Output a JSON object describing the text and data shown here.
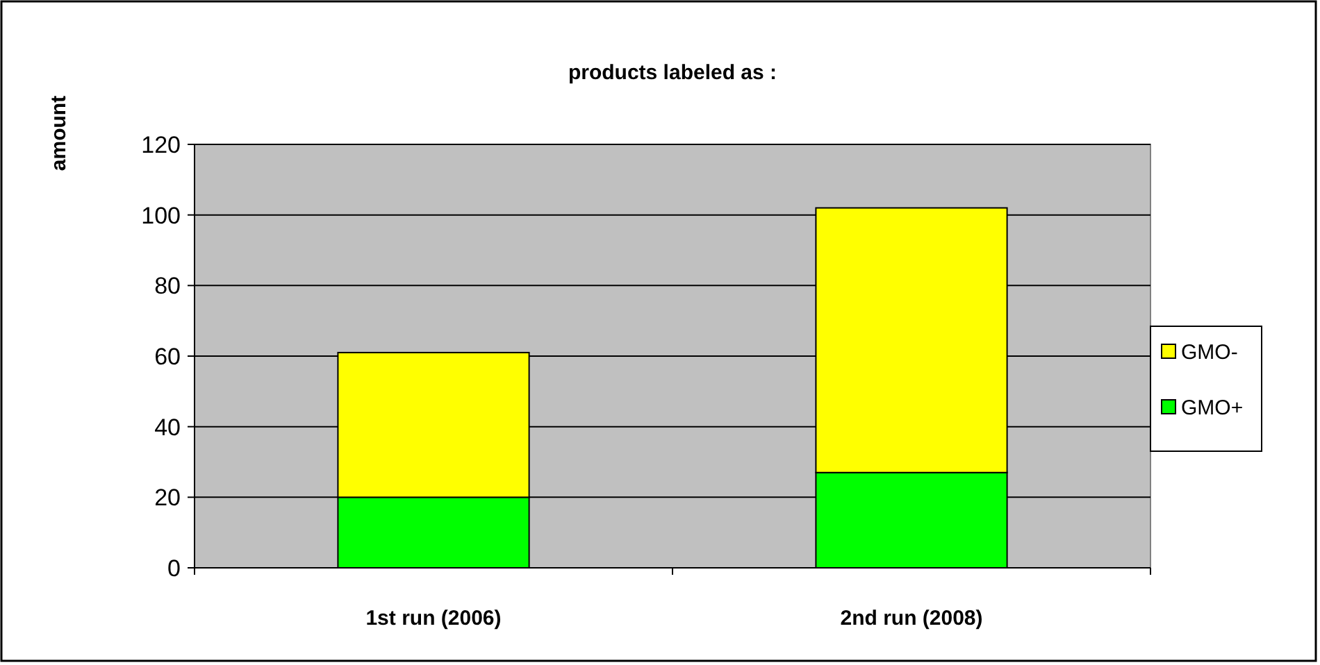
{
  "chart_data": {
    "type": "bar",
    "title": "products labeled as :",
    "ylabel": "amount",
    "categories": [
      "1st run (2006)",
      "2nd run (2008)"
    ],
    "stacked": true,
    "series": [
      {
        "name": "GMO+",
        "color": "#00ff00",
        "values": [
          20,
          27
        ]
      },
      {
        "name": "GMO-",
        "color": "#ffff00",
        "values": [
          41,
          75
        ]
      }
    ],
    "ylim": [
      0,
      120
    ],
    "yticks": [
      0,
      20,
      40,
      60,
      80,
      100,
      120
    ],
    "grid": "y",
    "legend": "right"
  }
}
